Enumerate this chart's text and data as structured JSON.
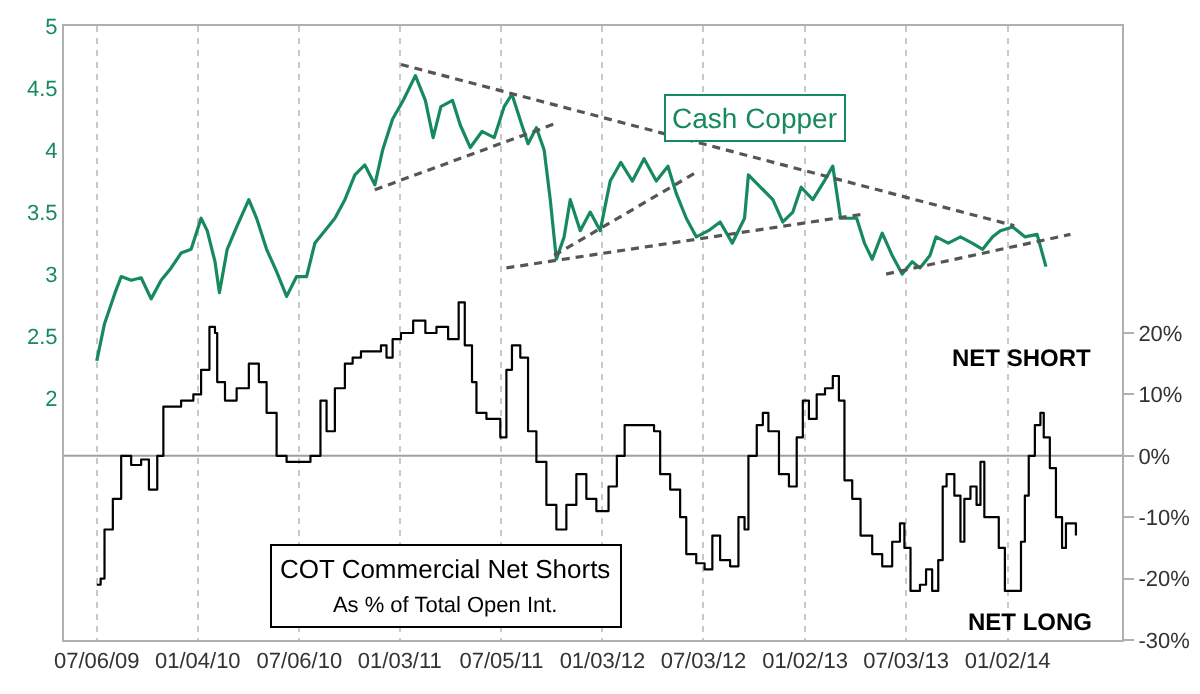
{
  "chart_data": {
    "type": "line",
    "xlim": [
      "2009-05-08",
      "2014-07-27"
    ],
    "xticks": [
      {
        "value": "2009-07-06",
        "label": "07/06/09"
      },
      {
        "value": "2010-01-04",
        "label": "01/04/10"
      },
      {
        "value": "2010-07-06",
        "label": "07/06/10"
      },
      {
        "value": "2011-01-03",
        "label": "01/03/11"
      },
      {
        "value": "2011-07-05",
        "label": "07/05/11"
      },
      {
        "value": "2012-01-03",
        "label": "01/03/12"
      },
      {
        "value": "2012-07-03",
        "label": "07/03/12"
      },
      {
        "value": "2013-01-02",
        "label": "01/02/13"
      },
      {
        "value": "2013-07-03",
        "label": "07/03/13"
      },
      {
        "value": "2014-01-02",
        "label": "01/02/14"
      }
    ],
    "ylim": [
      0.05,
      5
    ],
    "yticks": [
      2,
      2.5,
      3,
      3.5,
      4,
      4.5,
      5
    ],
    "y2lim": [
      -30,
      70
    ],
    "y2ticks": [
      {
        "value": -30,
        "label": "-30%"
      },
      {
        "value": -20,
        "label": "-20%"
      },
      {
        "value": -10,
        "label": "-10%"
      },
      {
        "value": 0,
        "label": "0%"
      },
      {
        "value": 10,
        "label": "10%"
      },
      {
        "value": 20,
        "label": "20%"
      }
    ],
    "grid": "x",
    "legend": false,
    "ref_lines": [
      {
        "axis": "y2",
        "value": 0,
        "color": "#a0a0a0"
      }
    ],
    "annotations": [
      "COT Commercial Net Shorts",
      "As % of Total Open Int.",
      "NET SHORT",
      "NET LONG"
    ],
    "series": [
      {
        "name": "Cash Copper",
        "type": "line",
        "color": "#168a5c",
        "x": [
          "2009-07-06",
          "2009-07-20",
          "2009-08-08",
          "2009-08-19",
          "2009-09-06",
          "2009-09-24",
          "2009-10-12",
          "2009-10-30",
          "2009-11-17",
          "2009-12-05",
          "2009-12-23",
          "2010-01-10",
          "2010-01-21",
          "2010-02-04",
          "2010-02-12",
          "2010-02-26",
          "2010-03-15",
          "2010-04-06",
          "2010-04-20",
          "2010-05-08",
          "2010-05-26",
          "2010-06-13",
          "2010-07-01",
          "2010-07-19",
          "2010-08-03",
          "2010-08-21",
          "2010-09-08",
          "2010-09-26",
          "2010-10-14",
          "2010-11-01",
          "2010-11-19",
          "2010-12-03",
          "2010-12-21",
          "2011-01-09",
          "2011-01-31",
          "2011-02-18",
          "2011-03-04",
          "2011-03-18",
          "2011-04-08",
          "2011-04-22",
          "2011-05-10",
          "2011-05-31",
          "2011-06-22",
          "2011-07-10",
          "2011-07-24",
          "2011-08-11",
          "2011-08-22",
          "2011-09-06",
          "2011-09-20",
          "2011-10-01",
          "2011-10-12",
          "2011-10-26",
          "2011-11-06",
          "2011-11-24",
          "2011-12-12",
          "2011-12-30",
          "2012-01-17",
          "2012-02-05",
          "2012-02-26",
          "2012-03-18",
          "2012-04-09",
          "2012-04-30",
          "2012-05-15",
          "2012-06-02",
          "2012-06-20",
          "2012-07-12",
          "2012-08-02",
          "2012-08-24",
          "2012-09-15",
          "2012-09-22",
          "2012-10-14",
          "2012-11-05",
          "2012-11-23",
          "2012-12-11",
          "2012-12-26",
          "2013-01-16",
          "2013-02-07",
          "2013-02-21",
          "2013-03-07",
          "2013-04-05",
          "2013-04-19",
          "2013-05-03",
          "2013-05-21",
          "2013-06-08",
          "2013-06-26",
          "2013-07-14",
          "2013-07-28",
          "2013-08-15",
          "2013-08-26",
          "2013-09-17",
          "2013-10-09",
          "2013-10-30",
          "2013-11-18",
          "2013-12-06",
          "2013-12-20",
          "2014-01-11",
          "2014-02-02",
          "2014-02-24",
          "2014-03-12"
        ],
        "values": [
          2.3,
          2.6,
          2.85,
          2.98,
          2.95,
          2.97,
          2.8,
          2.95,
          3.05,
          3.17,
          3.2,
          3.45,
          3.35,
          3.1,
          2.85,
          3.2,
          3.38,
          3.6,
          3.45,
          3.2,
          3.02,
          2.82,
          2.98,
          2.98,
          3.25,
          3.35,
          3.45,
          3.6,
          3.8,
          3.88,
          3.72,
          4.0,
          4.25,
          4.4,
          4.6,
          4.4,
          4.1,
          4.35,
          4.4,
          4.2,
          4.02,
          4.15,
          4.1,
          4.35,
          4.45,
          4.2,
          4.05,
          4.18,
          4.0,
          3.6,
          3.12,
          3.3,
          3.6,
          3.35,
          3.5,
          3.35,
          3.75,
          3.9,
          3.75,
          3.93,
          3.75,
          3.87,
          3.65,
          3.45,
          3.3,
          3.35,
          3.42,
          3.25,
          3.45,
          3.8,
          3.7,
          3.6,
          3.42,
          3.5,
          3.7,
          3.6,
          3.76,
          3.87,
          3.45,
          3.45,
          3.25,
          3.12,
          3.33,
          3.15,
          3.0,
          3.1,
          3.05,
          3.15,
          3.3,
          3.25,
          3.3,
          3.25,
          3.2,
          3.3,
          3.35,
          3.38,
          3.3,
          3.32,
          3.06
        ]
      },
      {
        "type": "step",
        "axis": "y2",
        "color": "#000000",
        "x": [
          "2009-07-06",
          "2009-07-13",
          "2009-07-20",
          "2009-08-04",
          "2009-08-19",
          "2009-09-06",
          "2009-09-24",
          "2009-10-08",
          "2009-10-23",
          "2009-11-03",
          "2009-12-05",
          "2009-12-27",
          "2010-01-10",
          "2010-01-25",
          "2010-02-04",
          "2010-02-08",
          "2010-02-22",
          "2010-03-15",
          "2010-04-06",
          "2010-04-24",
          "2010-05-08",
          "2010-05-26",
          "2010-06-13",
          "2010-07-08",
          "2010-07-26",
          "2010-08-13",
          "2010-08-24",
          "2010-09-08",
          "2010-09-26",
          "2010-10-10",
          "2010-10-25",
          "2010-11-30",
          "2010-12-10",
          "2010-12-21",
          "2011-01-05",
          "2011-01-27",
          "2011-02-18",
          "2011-03-10",
          "2011-03-31",
          "2011-04-19",
          "2011-04-30",
          "2011-05-13",
          "2011-05-21",
          "2011-06-08",
          "2011-06-22",
          "2011-07-03",
          "2011-07-14",
          "2011-07-24",
          "2011-08-08",
          "2011-08-22",
          "2011-09-06",
          "2011-09-24",
          "2011-10-12",
          "2011-10-30",
          "2011-11-17",
          "2011-12-05",
          "2011-12-23",
          "2011-12-30",
          "2012-01-14",
          "2012-01-29",
          "2012-02-12",
          "2012-02-26",
          "2012-03-18",
          "2012-04-05",
          "2012-04-16",
          "2012-05-04",
          "2012-05-22",
          "2012-06-02",
          "2012-06-20",
          "2012-07-05",
          "2012-07-19",
          "2012-08-02",
          "2012-08-20",
          "2012-09-04",
          "2012-09-15",
          "2012-09-22",
          "2012-10-07",
          "2012-10-18",
          "2012-10-28",
          "2012-11-16",
          "2012-12-04",
          "2012-12-18",
          "2012-12-29",
          "2013-01-09",
          "2013-01-23",
          "2013-02-07",
          "2013-02-21",
          "2013-03-04",
          "2013-03-14",
          "2013-03-28",
          "2013-04-12",
          "2013-05-03",
          "2013-05-21",
          "2013-06-08",
          "2013-06-22",
          "2013-06-30",
          "2013-07-11",
          "2013-07-28",
          "2013-08-08",
          "2013-08-19",
          "2013-08-30",
          "2013-09-07",
          "2013-09-14",
          "2013-09-28",
          "2013-10-09",
          "2013-10-16",
          "2013-10-27",
          "2013-11-07",
          "2013-11-14",
          "2013-11-21",
          "2013-12-06",
          "2013-12-17",
          "2013-12-28",
          "2014-01-11",
          "2014-01-26",
          "2014-02-02",
          "2014-02-09",
          "2014-02-20",
          "2014-03-02",
          "2014-03-08",
          "2014-03-19",
          "2014-03-30",
          "2014-04-10",
          "2014-04-17",
          "2014-04-28",
          "2014-05-05"
        ],
        "values": [
          -21,
          -20,
          -12,
          -7,
          0,
          -1.5,
          -0.6,
          -5.5,
          0,
          8,
          9,
          10,
          14,
          21,
          20,
          12,
          9,
          11,
          15,
          12,
          7,
          0,
          -1,
          -1,
          0,
          9,
          4,
          11,
          15,
          16,
          17,
          18,
          16,
          19,
          20,
          22,
          20,
          21,
          19,
          25,
          18,
          12,
          7,
          6,
          6,
          3,
          14,
          18,
          16,
          4,
          -1,
          -8,
          -12,
          -8,
          -3,
          -7,
          -9,
          -9,
          -5,
          0,
          5,
          5,
          5,
          4,
          -3,
          -5.5,
          -10,
          -16,
          -17.5,
          -18.5,
          -13,
          -17,
          -18,
          -10,
          -12,
          0,
          5,
          7,
          4,
          -3,
          -5,
          3,
          9,
          6,
          10,
          11,
          13,
          9,
          -4,
          -7,
          -13,
          -16,
          -18,
          -14,
          -11,
          -15,
          -22,
          -21,
          -18.5,
          -22,
          -17,
          -5,
          -3,
          -6.5,
          -14,
          -7,
          -5,
          -8,
          -1,
          -10,
          -10,
          -15,
          -22,
          -22,
          -14,
          -6.5,
          0,
          5,
          7,
          3,
          -2,
          -10,
          -15,
          -11,
          -11,
          -13
        ]
      },
      {
        "type": "line",
        "line_style": "dashed",
        "color": "#555555",
        "x": [
          "2011-01-05",
          "2014-01-14"
        ],
        "values": [
          4.69,
          3.39
        ]
      },
      {
        "type": "line",
        "line_style": "dashed",
        "color": "#555555",
        "x": [
          "2011-07-14",
          "2013-04-12"
        ],
        "values": [
          3.05,
          3.48
        ]
      },
      {
        "type": "line",
        "line_style": "dashed",
        "color": "#555555",
        "x": [
          "2010-11-19",
          "2011-10-08"
        ],
        "values": [
          3.68,
          4.21
        ]
      },
      {
        "type": "line",
        "line_style": "dashed",
        "color": "#555555",
        "x": [
          "2011-10-08",
          "2012-06-20"
        ],
        "values": [
          3.15,
          3.82
        ]
      },
      {
        "type": "line",
        "line_style": "dashed",
        "color": "#555555",
        "x": [
          "2013-05-28",
          "2014-04-25"
        ],
        "values": [
          3.0,
          3.32
        ]
      }
    ]
  }
}
